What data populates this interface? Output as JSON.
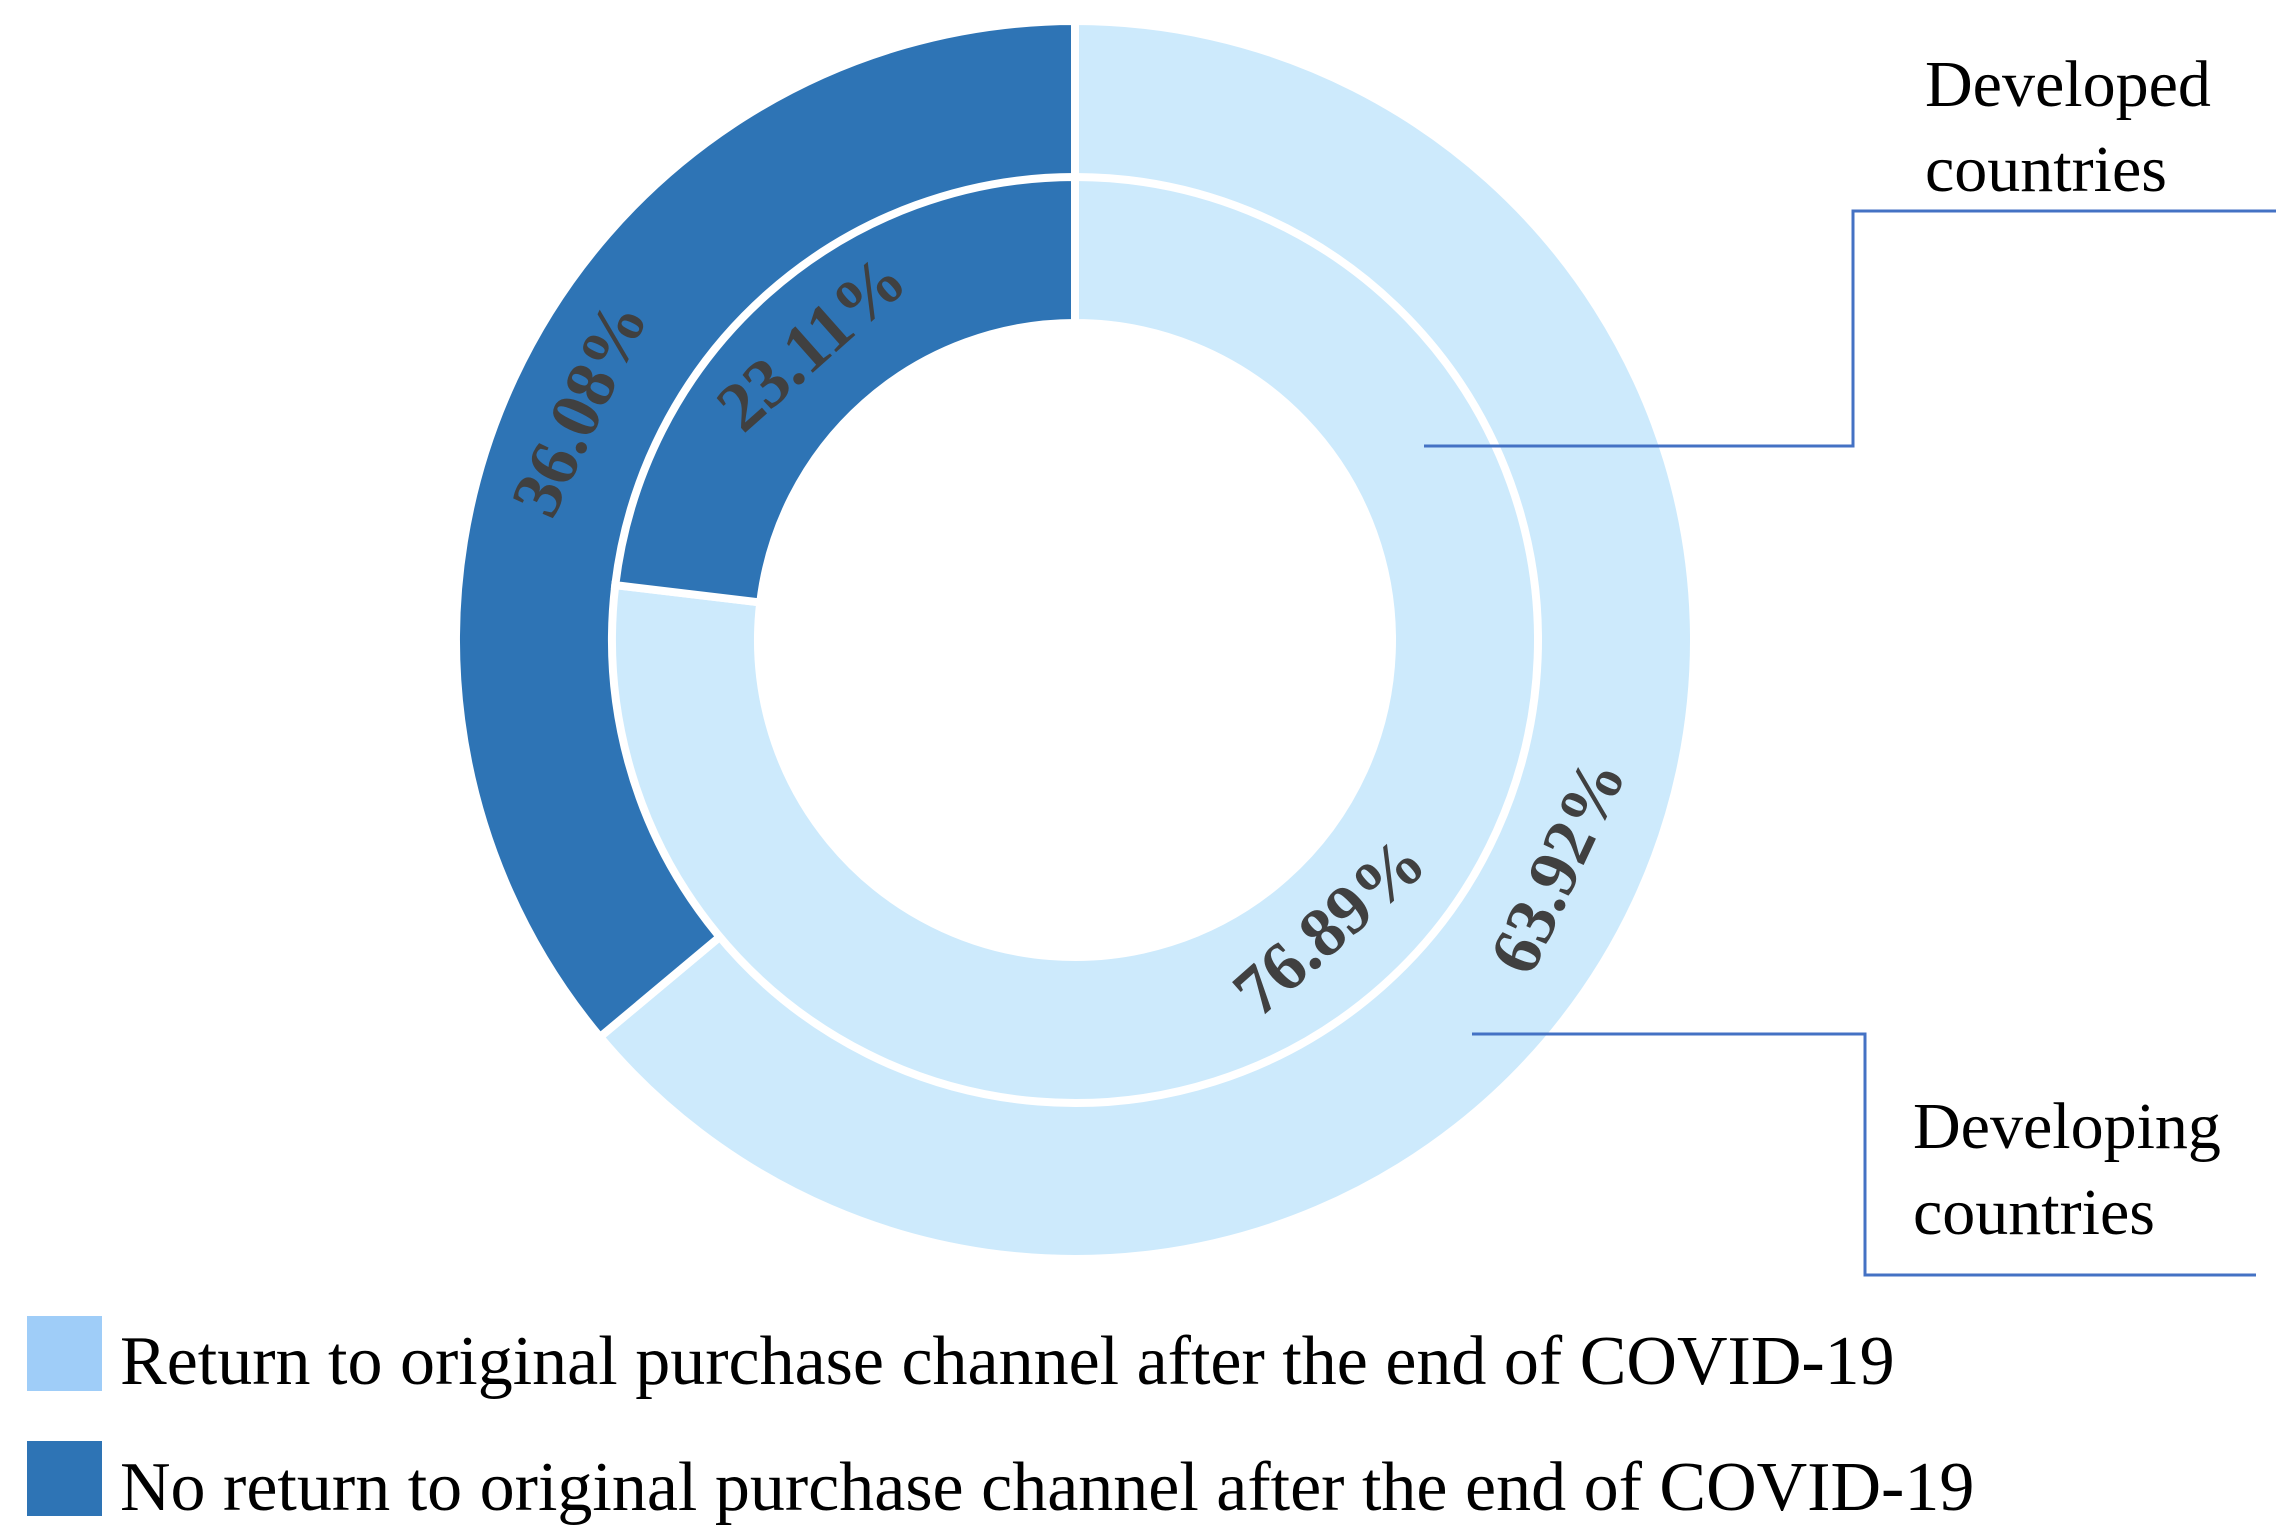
{
  "chart_data": {
    "type": "pie",
    "subtype": "nested-donut",
    "categories": [
      "Return to original purchase channel after the end of COVID-19",
      "No return to original purchase channel after the end of COVID-19"
    ],
    "series": [
      {
        "name": "Developed countries",
        "ring": "inner",
        "values": [
          76.89,
          23.11
        ],
        "labels": [
          "76.89%",
          "23.11%"
        ]
      },
      {
        "name": "Developing countries",
        "ring": "outer",
        "values": [
          63.92,
          36.08
        ],
        "labels": [
          "63.92%",
          "36.08%"
        ]
      }
    ],
    "legend": {
      "placement": "bottom-left",
      "items": [
        "Return to original purchase channel after the end of COVID-19",
        "No return to original purchase channel after the end of COVID-19"
      ]
    },
    "callouts": {
      "inner": [
        "Developed",
        "countries"
      ],
      "outer": [
        "Developing",
        "countries"
      ]
    },
    "colors": {
      "return": "#cdeafc",
      "no_return": "#2e74b5",
      "legend_return_swatch": "#9fcdf8",
      "callout_line": "#4472c4",
      "label_text": "#404040"
    }
  }
}
